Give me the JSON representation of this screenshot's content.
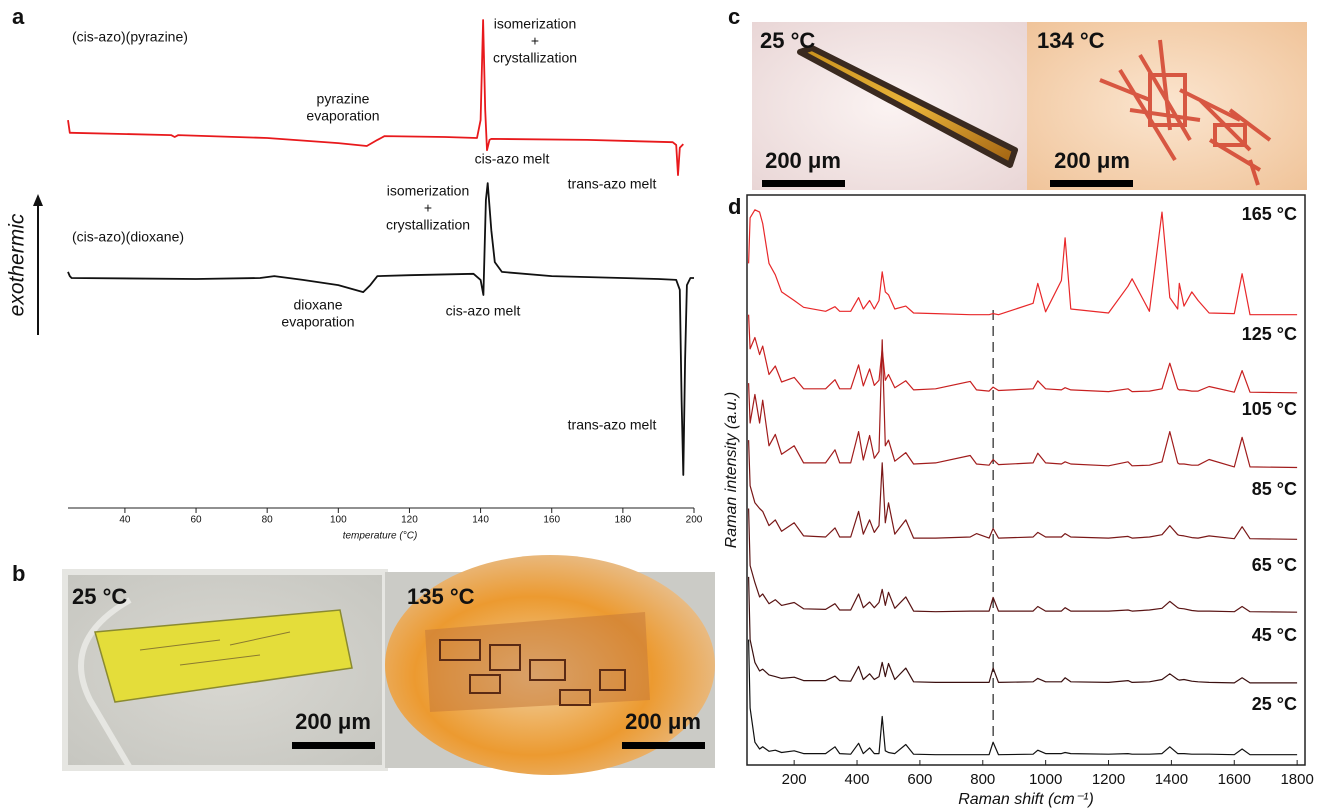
{
  "chart_data": [
    {
      "type": "line",
      "xlabel": "temperature (°C)",
      "ylabel": "exothermic",
      "xlim": [
        24,
        200
      ],
      "xticks": [
        40,
        60,
        80,
        100,
        120,
        140,
        160,
        180,
        200
      ],
      "ylim": [
        0,
        100
      ],
      "series": [
        {
          "name": "(cis-azo)(pyrazine)",
          "color": "#e8191c",
          "x": [
            24,
            24.5,
            25,
            53,
            54,
            55,
            80,
            100,
            108,
            111,
            113,
            130,
            139,
            140,
            140.7,
            141.3,
            141.8,
            142.5,
            143,
            170,
            194,
            195,
            195.5,
            196,
            197
          ],
          "values": [
            78.7,
            76,
            76,
            75.5,
            75.1,
            75.5,
            74.9,
            73.8,
            73.2,
            74.5,
            75.3,
            75.1,
            74.9,
            78.7,
            100,
            80.9,
            72.3,
            74.5,
            74.7,
            74.5,
            74,
            73.4,
            67,
            72.8,
            73.6
          ]
        },
        {
          "name": "(cis-azo)(dioxane)",
          "color": "#111111",
          "x": [
            24,
            24.5,
            25,
            60,
            78,
            82,
            90,
            100,
            107,
            109,
            111,
            120,
            138,
            140,
            140.8,
            141.5,
            142,
            143,
            144,
            146,
            160,
            190,
            195,
            196,
            196.5,
            197,
            197.5,
            198,
            199,
            200
          ],
          "values": [
            46.4,
            45.5,
            45.1,
            44.9,
            45.1,
            45.5,
            44.7,
            43.6,
            42.1,
            43.6,
            45.5,
            45.7,
            46,
            44.7,
            41.5,
            61.7,
            65.3,
            55.3,
            48.5,
            46.4,
            45.5,
            44.9,
            44.7,
            42.6,
            19.1,
            3.2,
            27.7,
            43.6,
            45.1,
            45.1
          ]
        }
      ],
      "annotations": [
        [
          "isomerization",
          "+",
          "crystallization"
        ],
        [
          "pyrazine",
          "evaporation"
        ],
        [
          "cis-azo melt"
        ],
        [
          "trans-azo melt"
        ],
        [
          "isomerization",
          "+",
          "crystallization"
        ],
        [
          "dioxane",
          "evaporation"
        ],
        [
          "cis-azo melt"
        ],
        [
          "trans-azo melt"
        ]
      ]
    },
    {
      "type": "line",
      "xlabel": "Raman shift (cm⁻¹)",
      "ylabel": "Raman intensity (a.u.)",
      "xlim": [
        50,
        1825
      ],
      "xticks": [
        200,
        400,
        600,
        800,
        1000,
        1200,
        1400,
        1600,
        1800
      ],
      "ylim": [
        0,
        100
      ],
      "vline": 833,
      "x": [
        55,
        60,
        75,
        90,
        100,
        120,
        140,
        160,
        200,
        230,
        300,
        330,
        345,
        380,
        405,
        420,
        440,
        455,
        470,
        480,
        490,
        500,
        520,
        555,
        580,
        650,
        760,
        780,
        820,
        833,
        850,
        960,
        975,
        1000,
        1050,
        1062,
        1080,
        1200,
        1262,
        1275,
        1330,
        1370,
        1395,
        1420,
        1425,
        1440,
        1465,
        1485,
        1520,
        1600,
        1625,
        1650,
        1800
      ],
      "series": [
        {
          "name": "165 °C",
          "color": "#e8282a",
          "values": [
            88,
            96,
            97.4,
            97,
            95,
            88,
            86,
            83,
            81.5,
            80.3,
            79.6,
            80.4,
            79.6,
            79.6,
            82,
            80,
            81.5,
            80,
            81.5,
            86.5,
            83,
            82.5,
            80,
            80.5,
            79.3,
            79.2,
            79,
            79,
            79,
            79.2,
            79,
            81,
            84.5,
            79.5,
            85,
            92.5,
            80,
            79.3,
            84,
            85.3,
            79.6,
            97,
            82,
            80,
            84.5,
            80.5,
            83,
            81.5,
            79.3,
            79.2,
            86.2,
            79,
            79
          ]
        },
        {
          "name": "125 °C",
          "color": "#c82020",
          "values": [
            79,
            73,
            75,
            72,
            73.5,
            68.5,
            70,
            67.2,
            68,
            66,
            66,
            67.6,
            66,
            66,
            70.2,
            66.5,
            69.5,
            66.6,
            67.5,
            73,
            67.5,
            68.5,
            66.2,
            67.4,
            65.8,
            66,
            67.3,
            65.8,
            65.6,
            66.3,
            65.7,
            66,
            67.4,
            66,
            65.8,
            66.2,
            65.8,
            65.5,
            66,
            65.5,
            65.6,
            66,
            70.5,
            66,
            65.8,
            65.8,
            65.6,
            65.6,
            66.4,
            65.4,
            69.2,
            65.4,
            65.3
          ]
        },
        {
          "name": "105 °C",
          "color": "#a01c1c",
          "values": [
            67,
            60,
            65,
            60,
            64,
            56,
            58,
            54.5,
            56,
            53,
            53,
            55.3,
            53,
            53,
            58.5,
            53.5,
            57.8,
            53.8,
            55,
            74.6,
            56,
            57,
            53.3,
            54.8,
            52.8,
            53,
            54.3,
            52.8,
            52.6,
            53.6,
            52.7,
            53,
            54.7,
            53,
            52.8,
            53.2,
            52.8,
            52.5,
            53.2,
            52.5,
            52.6,
            53.2,
            58.5,
            53,
            52.8,
            52.8,
            52.6,
            52.6,
            53.6,
            52.3,
            57.5,
            52.3,
            52.2
          ]
        },
        {
          "name": "85 °C",
          "color": "#7a1818",
          "values": [
            57,
            49,
            46,
            45,
            44.5,
            42,
            43,
            41,
            42.5,
            40.2,
            40,
            41.6,
            40,
            40,
            44.5,
            40.5,
            43,
            40.8,
            42,
            53,
            42.5,
            46,
            40.5,
            43,
            39.8,
            39.8,
            40,
            40.6,
            39.8,
            41.5,
            39.8,
            40,
            40.8,
            40,
            40,
            40.6,
            40,
            39.8,
            40.1,
            39.8,
            40,
            40.4,
            42,
            40.4,
            40.3,
            40.2,
            39.9,
            39.8,
            40.2,
            39.7,
            41.8,
            39.7,
            39.6
          ]
        },
        {
          "name": "65 °C",
          "color": "#5a1414",
          "values": [
            45,
            35,
            32,
            29.5,
            30,
            28.3,
            29,
            28,
            28.5,
            27.4,
            27.3,
            28.3,
            27.2,
            27.2,
            30,
            27.6,
            28.6,
            27.6,
            28.5,
            30.8,
            28,
            30.3,
            27.5,
            29.5,
            27,
            26.9,
            27,
            27,
            27,
            29.4,
            27,
            27,
            27.8,
            27,
            27,
            27.6,
            27,
            27,
            27.2,
            27,
            27.2,
            27.5,
            28.7,
            27.6,
            27.5,
            27.4,
            27.1,
            27,
            27,
            26.9,
            27.8,
            26.9,
            26.8
          ]
        },
        {
          "name": "45 °C",
          "color": "#3a0f0f",
          "values": [
            33,
            22,
            18,
            16.5,
            16.8,
            15.8,
            15.5,
            15.2,
            15.4,
            14.8,
            14.8,
            15.6,
            14.8,
            14.7,
            17.3,
            15,
            16,
            15,
            15.5,
            18,
            15.5,
            17.8,
            15,
            17,
            14.6,
            14.5,
            14.5,
            14.5,
            14.5,
            17,
            14.5,
            14.6,
            15.2,
            14.6,
            14.6,
            15.3,
            14.6,
            14.5,
            14.8,
            14.5,
            14.6,
            15,
            16,
            15,
            14.9,
            15,
            14.7,
            14.6,
            14.5,
            14.4,
            15.3,
            14.4,
            14.4
          ]
        },
        {
          "name": "25 °C",
          "color": "#111111",
          "values": [
            22,
            10,
            4,
            2.8,
            3.2,
            2.4,
            2.6,
            2.2,
            2.5,
            2,
            2,
            3.2,
            2,
            1.9,
            3.8,
            2,
            3,
            2,
            2,
            8.5,
            2.5,
            2.2,
            2,
            3.6,
            1.9,
            1.8,
            1.8,
            1.8,
            1.8,
            4,
            1.8,
            1.9,
            2.6,
            2,
            2,
            2.2,
            2,
            1.9,
            2,
            1.9,
            1.9,
            2,
            3.2,
            2,
            2,
            2,
            1.9,
            1.9,
            1.9,
            1.8,
            2.8,
            1.8,
            1.8
          ]
        }
      ]
    }
  ],
  "panels": {
    "letters": [
      "a",
      "b",
      "c",
      "d"
    ],
    "photos": [
      {
        "temperature": "25 °C",
        "scale": "200 μm"
      },
      {
        "temperature": "135 °C",
        "scale": "200 μm"
      },
      {
        "temperature": "25 °C",
        "scale": "200 μm"
      },
      {
        "temperature": "134 °C",
        "scale": "200 μm"
      }
    ]
  }
}
